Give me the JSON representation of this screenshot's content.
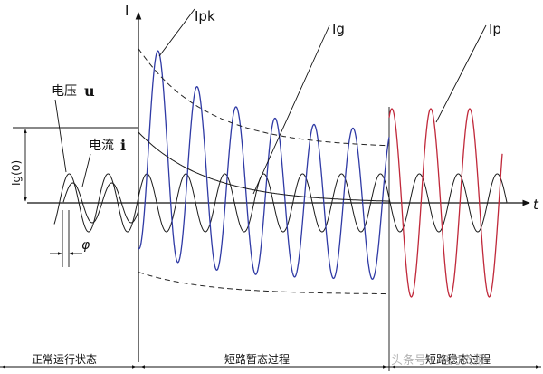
{
  "axes": {
    "y_label": "I",
    "x_label": "t"
  },
  "curve_labels": {
    "ipk": "Ipk",
    "ig": "Ig",
    "ip": "Ip",
    "ig0": "Ig(0)",
    "phi": "φ"
  },
  "voltage_label": {
    "text": "电压",
    "symbol": "u"
  },
  "current_label": {
    "text": "电流",
    "symbol": "i"
  },
  "phases": {
    "normal": "正常运行状态",
    "transient": "短路暂态过程",
    "steady": "短路稳态过程"
  },
  "watermark": "头条号 / 电力资源",
  "colors": {
    "line": "#1a1a1a",
    "transient_wave": "#2f3aa5",
    "steady_wave": "#c0283a",
    "envelope": "#222222"
  }
}
